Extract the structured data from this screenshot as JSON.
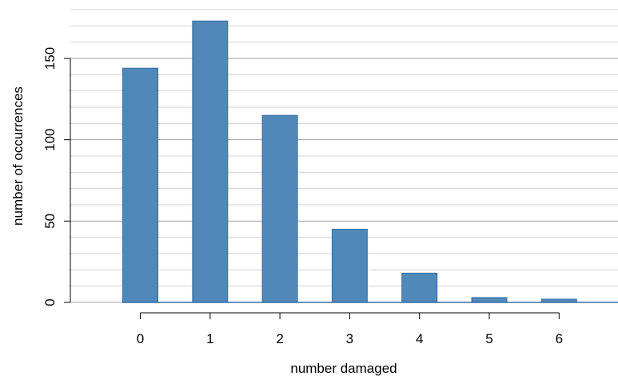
{
  "chart_data": {
    "type": "bar",
    "title": "",
    "xlabel": "number damaged",
    "ylabel": "number of occurrences",
    "categories": [
      "0",
      "1",
      "2",
      "3",
      "4",
      "5",
      "6"
    ],
    "values": [
      144,
      173,
      115,
      45,
      18,
      3,
      2
    ],
    "ylim": [
      0,
      180
    ],
    "yticks": [
      0,
      50,
      100,
      150
    ],
    "grid": "horizontal",
    "minor_grid_step": 10,
    "major_grid_step": 50,
    "legend": "none",
    "colors": {
      "bar_fill": "#5088BA",
      "bar_stroke": "#3A6E9E",
      "grid_minor": "#D3D3D3",
      "grid_major": "#A0A0A0",
      "axis": "#000000"
    }
  }
}
